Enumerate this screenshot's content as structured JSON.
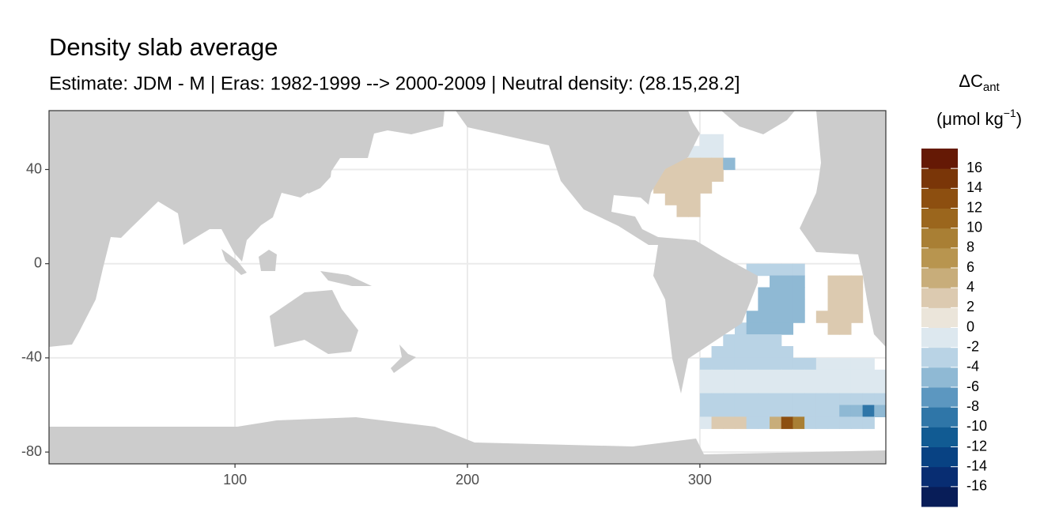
{
  "chart_data": {
    "type": "raster-map",
    "title": "Density slab average",
    "subtitle": "Estimate: JDM - M | Eras: 1982-1999 --> 2000-2009 | Neutral density: (28.15,28.2]",
    "xlim": [
      20,
      380
    ],
    "ylim": [
      -85,
      65
    ],
    "xticks": [
      100,
      200,
      300
    ],
    "yticks": [
      40,
      0,
      -40,
      -80
    ],
    "grid": true,
    "legend": {
      "title": "ΔC",
      "title_subscript": "ant",
      "unit": "(μmol kg",
      "unit_superscript": "−1",
      "unit_close": ")",
      "limits": [
        -18,
        18
      ],
      "ticks": [
        16,
        14,
        12,
        10,
        8,
        6,
        4,
        2,
        0,
        -2,
        -4,
        -6,
        -8,
        -10,
        -12,
        -14,
        -16
      ],
      "colors": [
        "#081d58",
        "#082d72",
        "#084283",
        "#115b93",
        "#2f76a8",
        "#5c97c0",
        "#8fb9d4",
        "#b9d3e5",
        "#dde8ef",
        "#ebe5da",
        "#dccab0",
        "#c8ad7a",
        "#b8954f",
        "#a97f34",
        "#9b661d",
        "#8d4f10",
        "#7a3608",
        "#651905"
      ]
    },
    "rows": [
      {
        "lat": 52.5,
        "lon": [
          302.5,
          307.5
        ],
        "values": [
          -2,
          -1
        ]
      },
      {
        "lat": 47.5,
        "lon": [
          297.5,
          302.5,
          307.5
        ],
        "values": [
          -1,
          -2,
          -1
        ]
      },
      {
        "lat": 42.5,
        "lon": [
          287.5,
          292.5,
          297.5,
          302.5,
          307.5,
          312.5
        ],
        "values": [
          3,
          3,
          3,
          3,
          3,
          -6
        ]
      },
      {
        "lat": 37.5,
        "lon": [
          282.5,
          287.5,
          292.5,
          297.5,
          302.5,
          307.5
        ],
        "values": [
          3,
          3,
          3,
          3,
          3,
          3
        ]
      },
      {
        "lat": 32.5,
        "lon": [
          282.5,
          287.5,
          292.5,
          297.5,
          302.5
        ],
        "values": [
          3,
          3,
          3,
          3,
          3
        ]
      },
      {
        "lat": 27.5,
        "lon": [
          287.5,
          292.5,
          297.5
        ],
        "values": [
          2,
          2,
          2
        ]
      },
      {
        "lat": 22.5,
        "lon": [
          292.5,
          297.5
        ],
        "values": [
          2,
          2
        ]
      },
      {
        "lat": -2.5,
        "lon": [
          322.5,
          327.5,
          332.5,
          337.5,
          342.5
        ],
        "values": [
          -3,
          -4,
          -4,
          -4,
          -4
        ]
      },
      {
        "lat": -7.5,
        "lon": [
          332.5,
          337.5,
          342.5,
          357.5,
          362.5,
          367.5
        ],
        "values": [
          -5,
          -5,
          -5,
          3,
          3,
          3
        ]
      },
      {
        "lat": -12.5,
        "lon": [
          327.5,
          332.5,
          337.5,
          342.5,
          357.5,
          362.5,
          367.5
        ],
        "values": [
          -5,
          -5,
          -5,
          -5,
          3,
          3,
          3
        ]
      },
      {
        "lat": -17.5,
        "lon": [
          327.5,
          332.5,
          337.5,
          342.5,
          357.5,
          362.5,
          367.5
        ],
        "values": [
          -5,
          -5,
          -5,
          -5,
          3,
          3,
          3
        ]
      },
      {
        "lat": -22.5,
        "lon": [
          322.5,
          327.5,
          332.5,
          337.5,
          342.5,
          352.5,
          357.5,
          362.5,
          367.5
        ],
        "values": [
          -6,
          -5,
          -5,
          -5,
          -5,
          3,
          3,
          3,
          3
        ]
      },
      {
        "lat": -27.5,
        "lon": [
          317.5,
          322.5,
          327.5,
          332.5,
          337.5,
          357.5,
          362.5
        ],
        "values": [
          -4,
          -6,
          -5,
          -5,
          -5,
          2,
          2
        ]
      },
      {
        "lat": -32.5,
        "lon": [
          312.5,
          317.5,
          322.5,
          327.5,
          332.5
        ],
        "values": [
          -3,
          -3,
          -3,
          -3,
          -3
        ]
      },
      {
        "lat": -37.5,
        "lon": [
          307.5,
          312.5,
          317.5,
          322.5,
          327.5,
          332.5,
          337.5
        ],
        "values": [
          -3,
          -3,
          -3,
          -3,
          -3,
          -3,
          -3
        ]
      },
      {
        "lat": -42.5,
        "lon": [
          302.5,
          307.5,
          312.5,
          317.5,
          322.5,
          327.5,
          332.5,
          337.5,
          342.5,
          347.5,
          352.5,
          357.5,
          362.5,
          367.5,
          372.5
        ],
        "values": [
          -3,
          -3,
          -3,
          -3,
          -3,
          -3,
          -3,
          -3,
          -3,
          -3,
          -2,
          -2,
          -2,
          -2,
          -2
        ]
      },
      {
        "lat": -47.5,
        "lon": [
          302.5,
          307.5,
          312.5,
          317.5,
          322.5,
          327.5,
          332.5,
          337.5,
          342.5,
          347.5,
          352.5,
          357.5,
          362.5,
          367.5,
          372.5,
          377.5
        ],
        "values": [
          -2,
          -2,
          -2,
          -2,
          -2,
          -2,
          -2,
          -2,
          -2,
          -2,
          -2,
          -2,
          -2,
          -2,
          -2,
          -2
        ]
      },
      {
        "lat": -52.5,
        "lon": [
          302.5,
          307.5,
          312.5,
          317.5,
          322.5,
          327.5,
          332.5,
          337.5,
          342.5,
          347.5,
          352.5,
          357.5,
          362.5,
          367.5,
          372.5,
          377.5
        ],
        "values": [
          -2,
          -2,
          -2,
          -2,
          -2,
          -2,
          -2,
          -2,
          -2,
          -2,
          -2,
          -2,
          -2,
          -2,
          -2,
          -2
        ]
      },
      {
        "lat": -57.5,
        "lon": [
          302.5,
          307.5,
          312.5,
          317.5,
          322.5,
          327.5,
          332.5,
          337.5,
          342.5,
          347.5,
          352.5,
          357.5,
          362.5,
          367.5,
          372.5,
          377.5
        ],
        "values": [
          -3,
          -3,
          -3,
          -3,
          -3,
          -3,
          -3,
          -3,
          -3,
          -3,
          -3,
          -3,
          -3,
          -3,
          -3,
          -3
        ]
      },
      {
        "lat": -62.5,
        "lon": [
          302.5,
          307.5,
          312.5,
          317.5,
          322.5,
          327.5,
          332.5,
          337.5,
          342.5,
          347.5,
          352.5,
          357.5,
          362.5,
          367.5,
          372.5,
          377.5
        ],
        "values": [
          -4,
          -4,
          -4,
          -4,
          -4,
          -4,
          -4,
          -4,
          -4,
          -4,
          -4,
          -4,
          -5,
          -6,
          -9,
          -5
        ]
      },
      {
        "lat": -67.5,
        "lon": [
          302.5,
          307.5,
          312.5,
          317.5,
          322.5,
          327.5,
          332.5,
          337.5,
          342.5,
          347.5,
          352.5,
          357.5,
          362.5,
          367.5,
          372.5
        ],
        "values": [
          -2,
          2,
          3,
          2,
          -3,
          -4,
          4,
          12,
          8,
          -3,
          -4,
          -4,
          -3,
          -3,
          -3
        ]
      }
    ]
  }
}
